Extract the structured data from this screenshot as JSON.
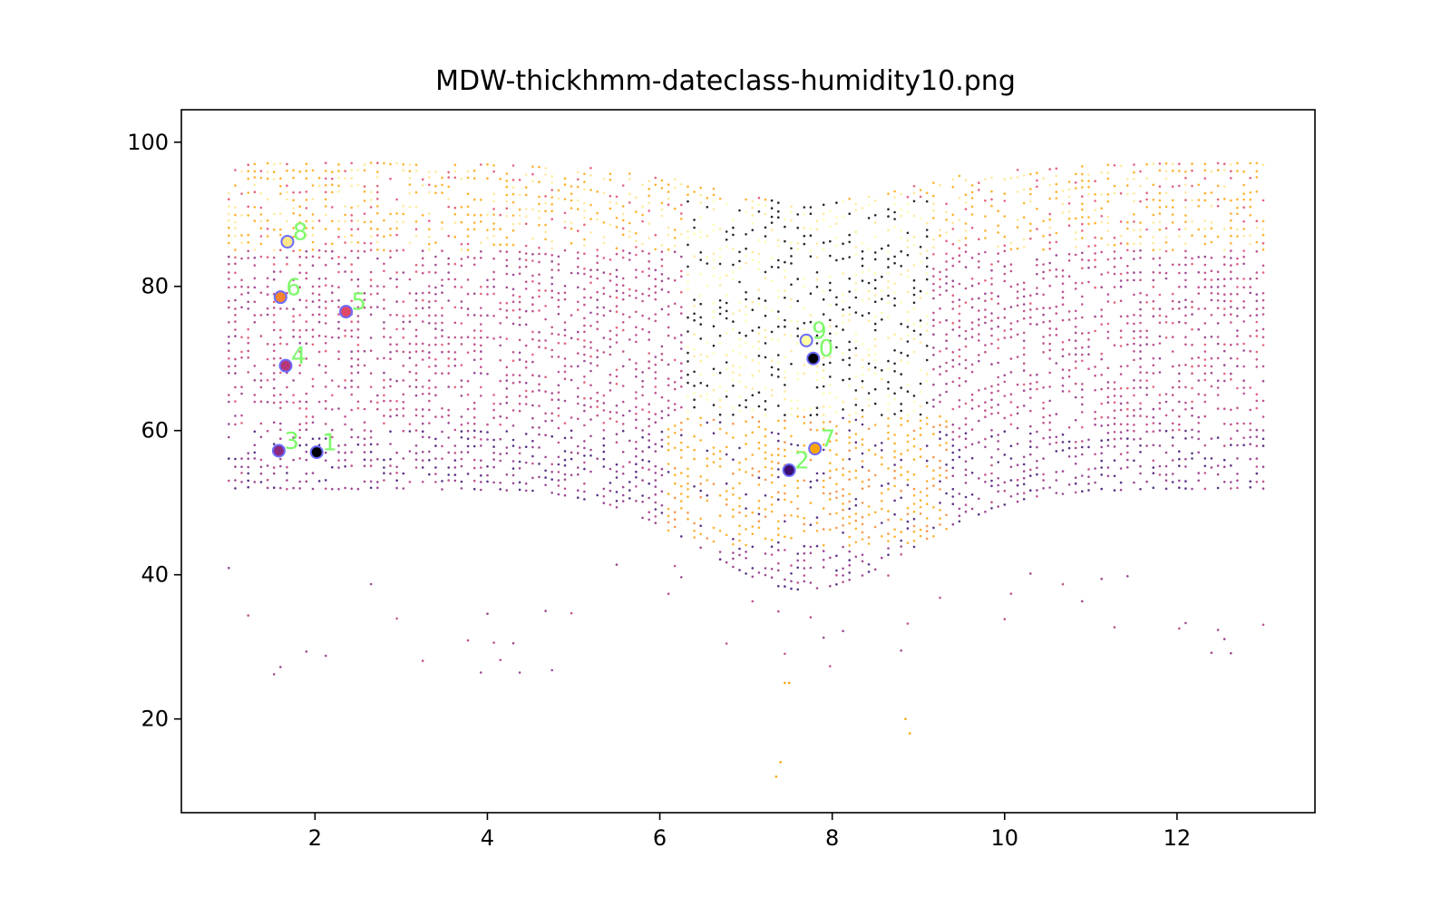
{
  "chart_data": {
    "type": "scatter",
    "title": "MDW-thickhmm-dateclass-humidity10.png",
    "xlabel": "",
    "ylabel": "",
    "xlim": [
      0.45,
      13.6
    ],
    "ylim": [
      7,
      104.5
    ],
    "xticks": [
      2,
      4,
      6,
      8,
      10,
      12
    ],
    "yticks": [
      20,
      40,
      60,
      80,
      100
    ],
    "grid": false,
    "legend": "none",
    "class_colors": [
      "#000004",
      "#3b0f70",
      "#8c2981",
      "#b5367a",
      "#de4968",
      "#f7842f",
      "#fca50a",
      "#fde68a",
      "#fcffa4"
    ],
    "point_density_note": "dense background cloud of small dots across x from 1 to 13, y mostly 40-100",
    "annotations": [
      {
        "label": "0",
        "x": 7.78,
        "y": 70,
        "fill": "#000004"
      },
      {
        "label": "1",
        "x": 2.02,
        "y": 57,
        "fill": "#000004"
      },
      {
        "label": "2",
        "x": 7.5,
        "y": 54.5,
        "fill": "#3b0f70"
      },
      {
        "label": "3",
        "x": 1.58,
        "y": 57.2,
        "fill": "#8c2981"
      },
      {
        "label": "4",
        "x": 1.66,
        "y": 69,
        "fill": "#b5367a"
      },
      {
        "label": "5",
        "x": 2.36,
        "y": 76.5,
        "fill": "#de4968"
      },
      {
        "label": "6",
        "x": 1.6,
        "y": 78.5,
        "fill": "#f7842f"
      },
      {
        "label": "7",
        "x": 7.8,
        "y": 57.5,
        "fill": "#fca50a"
      },
      {
        "label": "8",
        "x": 1.68,
        "y": 86.2,
        "fill": "#fde68a"
      },
      {
        "label": "9",
        "x": 7.7,
        "y": 72.5,
        "fill": "#fcffa4"
      }
    ]
  }
}
